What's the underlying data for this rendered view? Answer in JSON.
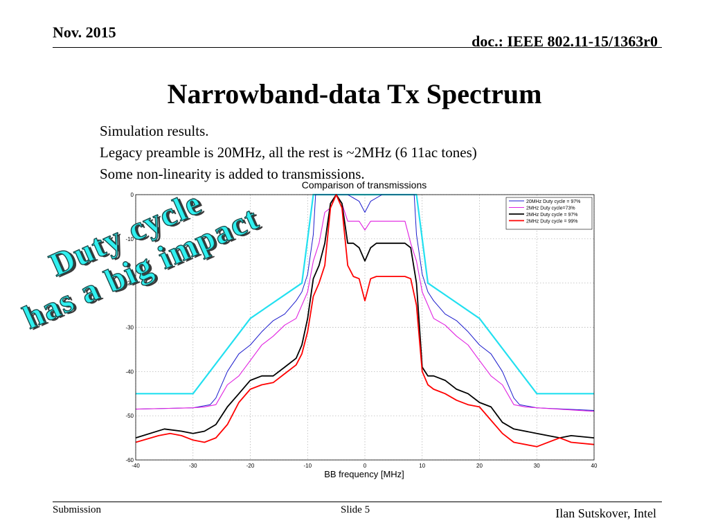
{
  "header": {
    "date": "Nov. 2015",
    "doc": "doc.: IEEE 802.11-15/1363r0"
  },
  "slide": {
    "title": "Narrowband-data Tx Spectrum",
    "bullets": [
      "Simulation results.",
      "Legacy preamble is 20MHz, all the rest is ~2MHz (6 11ac tones)",
      "Some non-linearity is added to transmissions."
    ],
    "overlay_lines": [
      "Duty cycle",
      "has a big impact"
    ]
  },
  "footer": {
    "left": "Submission",
    "center": "Slide 5",
    "right": "Ilan Sutskover, Intel"
  },
  "chart_data": {
    "type": "line",
    "title": "Comparison of transmissions",
    "xlabel": "BB frequency [MHz]",
    "ylabel": "",
    "xlim": [
      -40,
      40
    ],
    "ylim": [
      -60,
      0
    ],
    "xticks": [
      -40,
      -30,
      -20,
      -10,
      0,
      10,
      20,
      30,
      40
    ],
    "yticks": [
      0,
      -10,
      -20,
      -30,
      -40,
      -50,
      -60
    ],
    "grid": true,
    "legend_position": "top-right",
    "mask": {
      "color": "#22e0f0",
      "x": [
        -40,
        -30,
        -20,
        -11,
        -10,
        -9,
        9,
        10,
        11,
        20,
        30,
        40
      ],
      "y": [
        -45,
        -45,
        -28,
        -20,
        -10,
        0,
        0,
        -10,
        -20,
        -28,
        -45,
        -45
      ]
    },
    "series": [
      {
        "name": "20MHz Duty cycle = 97%",
        "color": "#1a1acc",
        "x": [
          -40,
          -30,
          -27,
          -26,
          -24,
          -22,
          -20,
          -18,
          -16,
          -14,
          -12,
          -11,
          -10,
          -9,
          -8.6,
          -6,
          -3,
          -1,
          0,
          1,
          3,
          6,
          8.6,
          9,
          10,
          11,
          12,
          14,
          16,
          18,
          20,
          22,
          24,
          26,
          27,
          30,
          40
        ],
        "y": [
          -48.5,
          -48.2,
          -47.5,
          -46,
          -40,
          -36,
          -34,
          -31,
          -28.5,
          -27,
          -24,
          -22,
          -18,
          -9,
          0,
          0,
          0,
          -1.5,
          -4,
          -1.5,
          0,
          0,
          0,
          -9,
          -18,
          -22,
          -24,
          -27,
          -28.5,
          -31,
          -34,
          -36,
          -40,
          -46,
          -47.5,
          -48.2,
          -48.8
        ]
      },
      {
        "name": "2MHz Duty cycle=73%",
        "color": "#e020e0",
        "x": [
          -40,
          -30,
          -28,
          -26,
          -24,
          -22,
          -20,
          -18,
          -16,
          -14,
          -12,
          -10,
          -9,
          -8,
          -7,
          -6,
          -5,
          -4,
          -3,
          -2,
          -1,
          0,
          1,
          2,
          3,
          4,
          5,
          6,
          7,
          8,
          9,
          10,
          12,
          14,
          16,
          18,
          20,
          22,
          24,
          26,
          28,
          30,
          40
        ],
        "y": [
          -48.5,
          -48.2,
          -48,
          -47.5,
          -43,
          -41,
          -37.5,
          -34,
          -32,
          -29.5,
          -28,
          -22,
          -15,
          -11,
          -4,
          -3,
          0,
          -2,
          -6,
          -6,
          -6,
          -8,
          -6,
          -6,
          -6,
          -6,
          -6,
          -6,
          -6,
          -11,
          -15,
          -22,
          -28,
          -29.5,
          -32,
          -34,
          -37.5,
          -41,
          -43,
          -47.5,
          -48,
          -48.2,
          -49
        ]
      },
      {
        "name": "2MHz Duty cycle = 97%",
        "color": "#000000",
        "x": [
          -40,
          -35,
          -32,
          -30,
          -28,
          -26,
          -24,
          -22,
          -20,
          -18,
          -16,
          -14,
          -12,
          -11,
          -10,
          -9,
          -8,
          -7,
          -6,
          -5,
          -4,
          -3,
          -2,
          -1,
          0,
          1,
          2,
          3,
          4,
          5,
          6,
          7,
          8,
          9,
          10,
          11,
          12,
          14,
          16,
          18,
          20,
          22,
          24,
          26,
          30,
          34,
          36,
          40
        ],
        "y": [
          -55,
          -53,
          -53.5,
          -54,
          -53.5,
          -52,
          -48,
          -45,
          -42,
          -41,
          -41,
          -39,
          -37,
          -34,
          -28,
          -19,
          -16,
          -11,
          -2,
          0,
          -2,
          -11,
          -11,
          -12,
          -15,
          -12,
          -11,
          -11,
          -11,
          -11,
          -11,
          -11,
          -12,
          -20,
          -39,
          -41,
          -41,
          -42,
          -44,
          -45,
          -47,
          -48,
          -51.5,
          -53,
          -54,
          -55,
          -54.5,
          -55
        ]
      },
      {
        "name": "2MHz Duty cycle = 99%",
        "color": "#ff0000",
        "x": [
          -40,
          -36,
          -34,
          -32,
          -30,
          -28,
          -26,
          -24,
          -22,
          -20,
          -18,
          -16,
          -14,
          -12,
          -11,
          -10,
          -9,
          -8,
          -7,
          -6,
          -5,
          -4,
          -3,
          -2,
          -1,
          0,
          1,
          2,
          3,
          4,
          5,
          6,
          7,
          8,
          9,
          10,
          11,
          12,
          14,
          16,
          18,
          20,
          22,
          24,
          26,
          30,
          34,
          36,
          40
        ],
        "y": [
          -56,
          -54.5,
          -54,
          -54.5,
          -55.5,
          -56,
          -55,
          -52,
          -47,
          -44,
          -43,
          -42.5,
          -40.5,
          -38.5,
          -36,
          -31,
          -23,
          -20,
          -16,
          -3,
          0,
          -3,
          -16,
          -18.5,
          -19,
          -24,
          -19,
          -18.5,
          -18.5,
          -18.5,
          -18.5,
          -18.5,
          -18.5,
          -19,
          -25,
          -40,
          -43,
          -44,
          -45,
          -46.5,
          -47.5,
          -48,
          -51,
          -54,
          -56,
          -57,
          -55,
          -56,
          -56.5
        ]
      }
    ]
  }
}
